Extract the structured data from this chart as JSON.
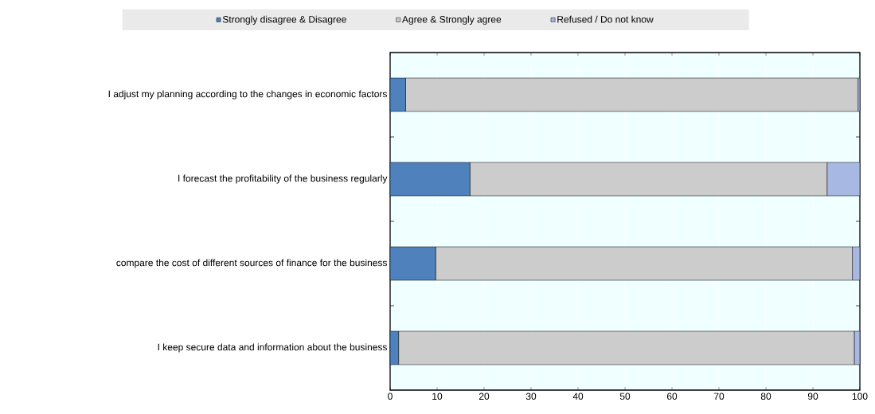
{
  "chart_data": {
    "type": "bar",
    "orientation": "horizontal",
    "stacked": true,
    "categories": [
      "I adjust my planning according to the changes in economic factors",
      "I forecast the profitability of the business regularly",
      "compare the cost of different sources of finance for the business",
      "I keep secure data and information about the business"
    ],
    "series": [
      {
        "name": "Strongly disagree & Disagree",
        "color": "#4f81bd",
        "values": [
          3.3,
          17.0,
          9.7,
          1.8
        ]
      },
      {
        "name": "Agree & Strongly agree",
        "color": "#cccccc",
        "values": [
          96.3,
          76.0,
          88.7,
          97.0
        ]
      },
      {
        "name": "Refused / Do not know",
        "color": "#a7b9e3",
        "values": [
          0.4,
          7.0,
          1.6,
          1.2
        ]
      }
    ],
    "xlim": [
      0,
      100
    ],
    "xticks": [
      0,
      10,
      20,
      30,
      40,
      50,
      60,
      70,
      80,
      90,
      100
    ],
    "grid": "x",
    "legend": "top"
  }
}
